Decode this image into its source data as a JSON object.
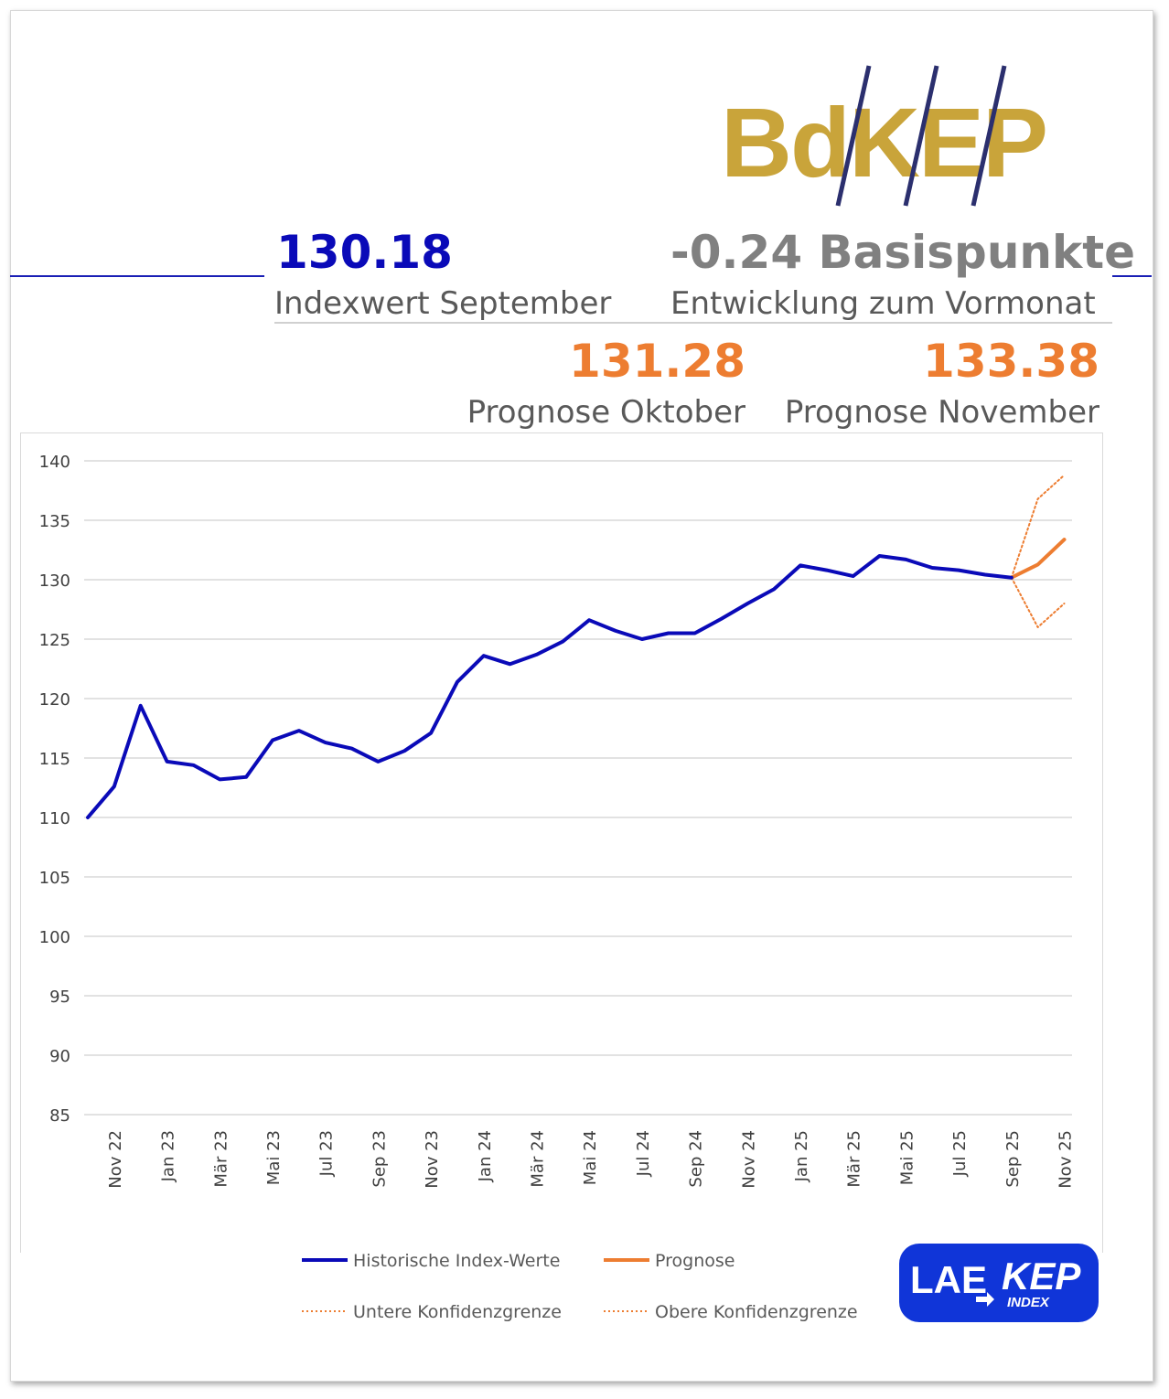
{
  "header": {
    "logo_text": "BdKEP",
    "index_value": "130.18",
    "index_label": "Indexwert September",
    "change_value": "-0.24 Basispunkte",
    "change_label": "Entwicklung zum Vormonat",
    "forecast1_value": "131.28",
    "forecast1_label": "Prognose Oktober",
    "forecast2_value": "133.38",
    "forecast2_label": "Prognose November"
  },
  "colors": {
    "index_blue": "#0a0ab8",
    "change_gray": "#808080",
    "forecast_orange": "#ed7d31",
    "logo_gold": "#c9a43a",
    "logo_navy": "#2b2f6e",
    "lae_blue": "#1035d8"
  },
  "chart_data": {
    "type": "line",
    "ylim": [
      85,
      140
    ],
    "yticks": [
      140,
      135,
      130,
      125,
      120,
      115,
      110,
      105,
      100,
      95,
      90,
      85
    ],
    "x_tick_labels": [
      "Nov 22",
      "Jan 23",
      "Mär 23",
      "Mai 23",
      "Jul 23",
      "Sep 23",
      "Nov 23",
      "Jan 24",
      "Mär 24",
      "Mai 24",
      "Jul 24",
      "Sep 24",
      "Nov 24",
      "Jan 25",
      "Mär 25",
      "Mai 25",
      "Jul 25",
      "Sep 25",
      "Nov 25"
    ],
    "x": [
      "Okt 22",
      "Nov 22",
      "Dez 22",
      "Jan 23",
      "Feb 23",
      "Mär 23",
      "Apr 23",
      "Mai 23",
      "Jun 23",
      "Jul 23",
      "Aug 23",
      "Sep 23",
      "Okt 23",
      "Nov 23",
      "Dez 23",
      "Jan 24",
      "Feb 24",
      "Mär 24",
      "Apr 24",
      "Mai 24",
      "Jun 24",
      "Jul 24",
      "Aug 24",
      "Sep 24",
      "Okt 24",
      "Nov 24",
      "Dez 24",
      "Jan 25",
      "Feb 25",
      "Mär 25",
      "Apr 25",
      "Mai 25",
      "Jun 25",
      "Jul 25",
      "Aug 25",
      "Sep 25",
      "Okt 25",
      "Nov 25"
    ],
    "series": [
      {
        "name": "Historische Index-Werte",
        "color": "#0a0ab8",
        "style": "solid",
        "values": [
          110.0,
          112.6,
          119.4,
          114.7,
          114.4,
          113.2,
          113.4,
          116.5,
          117.3,
          116.3,
          115.8,
          114.7,
          115.6,
          117.1,
          121.4,
          123.6,
          122.9,
          123.7,
          124.8,
          126.6,
          125.7,
          125.0,
          125.5,
          125.5,
          126.7,
          128.0,
          129.2,
          131.2,
          130.8,
          130.3,
          132.0,
          131.7,
          131.0,
          130.8,
          130.42,
          130.18,
          null,
          null
        ]
      },
      {
        "name": "Prognose",
        "color": "#ed7d31",
        "style": "solid",
        "values": [
          null,
          null,
          null,
          null,
          null,
          null,
          null,
          null,
          null,
          null,
          null,
          null,
          null,
          null,
          null,
          null,
          null,
          null,
          null,
          null,
          null,
          null,
          null,
          null,
          null,
          null,
          null,
          null,
          null,
          null,
          null,
          null,
          null,
          null,
          null,
          130.18,
          131.28,
          133.38
        ]
      },
      {
        "name": "Untere Konfidenzgrenze",
        "color": "#ed7d31",
        "style": "dotted",
        "values": [
          null,
          null,
          null,
          null,
          null,
          null,
          null,
          null,
          null,
          null,
          null,
          null,
          null,
          null,
          null,
          null,
          null,
          null,
          null,
          null,
          null,
          null,
          null,
          null,
          null,
          null,
          null,
          null,
          null,
          null,
          null,
          null,
          null,
          null,
          null,
          130.18,
          126.0,
          128.0
        ]
      },
      {
        "name": "Obere Konfidenzgrenze",
        "color": "#ed7d31",
        "style": "dotted",
        "values": [
          null,
          null,
          null,
          null,
          null,
          null,
          null,
          null,
          null,
          null,
          null,
          null,
          null,
          null,
          null,
          null,
          null,
          null,
          null,
          null,
          null,
          null,
          null,
          null,
          null,
          null,
          null,
          null,
          null,
          null,
          null,
          null,
          null,
          null,
          null,
          130.18,
          136.8,
          138.8
        ]
      }
    ],
    "grid": true,
    "legend_position": "bottom"
  },
  "footer_logo": {
    "main": "LAE",
    "right": "KEP",
    "sub": "INDEX"
  }
}
